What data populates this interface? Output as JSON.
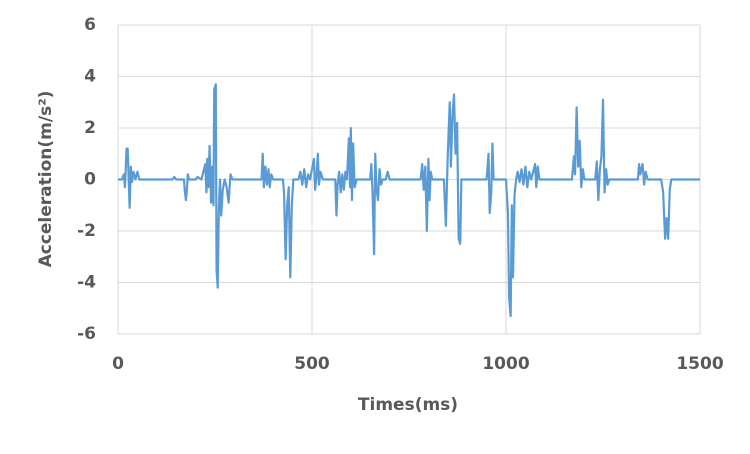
{
  "chart_data": {
    "type": "line",
    "x_label": "Times(ms)",
    "y_label": "Acceleration(m/s²)",
    "color": "#5b9bd5",
    "grid": true,
    "xlim": [
      0,
      1500
    ],
    "xticks": [
      0,
      500,
      1000,
      1500
    ],
    "ylim": [
      -6,
      6
    ],
    "yticks": [
      -6,
      -4,
      -2,
      0,
      2,
      4,
      6
    ],
    "x": [
      0,
      10,
      15,
      18,
      22,
      25,
      28,
      30,
      33,
      36,
      40,
      45,
      50,
      55,
      140,
      145,
      150,
      170,
      172,
      175,
      178,
      180,
      183,
      200,
      205,
      215,
      225,
      228,
      230,
      233,
      236,
      240,
      243,
      246,
      248,
      252,
      254,
      257,
      260,
      263,
      266,
      270,
      275,
      280,
      285,
      290,
      295,
      370,
      373,
      376,
      380,
      384,
      388,
      391,
      395,
      400,
      425,
      428,
      432,
      436,
      440,
      444,
      448,
      452,
      465,
      470,
      475,
      480,
      485,
      490,
      495,
      505,
      508,
      512,
      515,
      518,
      522,
      528,
      560,
      563,
      566,
      570,
      574,
      578,
      582,
      586,
      590,
      595,
      598,
      600,
      603,
      606,
      610,
      615,
      650,
      653,
      656,
      660,
      663,
      666,
      670,
      674,
      678,
      682,
      690,
      695,
      700,
      780,
      784,
      788,
      792,
      796,
      800,
      803,
      806,
      810,
      840,
      845,
      850,
      855,
      858,
      862,
      866,
      870,
      874,
      878,
      882,
      885,
      900,
      950,
      955,
      958,
      962,
      965,
      968,
      975,
      1000,
      1005,
      1008,
      1012,
      1015,
      1018,
      1022,
      1026,
      1030,
      1035,
      1040,
      1045,
      1050,
      1055,
      1060,
      1065,
      1075,
      1078,
      1082,
      1086,
      1170,
      1175,
      1178,
      1182,
      1186,
      1190,
      1194,
      1198,
      1202,
      1230,
      1234,
      1238,
      1242,
      1246,
      1250,
      1254,
      1258,
      1262,
      1266,
      1340,
      1343,
      1346,
      1352,
      1356,
      1360,
      1365,
      1400,
      1405,
      1410,
      1414,
      1418,
      1422,
      1426,
      1500
    ],
    "values": [
      0,
      0,
      0.2,
      -0.3,
      1.2,
      1.2,
      -0.2,
      -1.1,
      0.5,
      -0.1,
      0.3,
      0,
      0.3,
      0,
      0,
      0.1,
      0,
      0,
      -0.4,
      -0.8,
      -0.3,
      0.2,
      0,
      0,
      0.1,
      0,
      0.6,
      -0.5,
      0.8,
      -0.3,
      1.3,
      -0.9,
      0.5,
      -1,
      3.5,
      3.7,
      -3.5,
      -4.2,
      -1,
      0,
      -1.4,
      -0.4,
      0,
      -0.3,
      -0.9,
      0.2,
      0,
      0,
      1,
      -0.3,
      0.5,
      -0.2,
      0.4,
      -0.3,
      0.2,
      0,
      0,
      -0.5,
      -3.1,
      -1,
      -0.3,
      -3.8,
      -1,
      0,
      0,
      0.3,
      -0.2,
      0.4,
      -0.3,
      0.2,
      0,
      0.8,
      -0.4,
      0.2,
      1,
      -0.2,
      0.3,
      0,
      0,
      -1.4,
      -0.2,
      0.3,
      -0.5,
      0.2,
      -0.4,
      0.3,
      0,
      1.6,
      -0.3,
      2,
      -0.8,
      1.4,
      -0.3,
      0,
      0,
      0.6,
      -0.5,
      -2.9,
      1,
      -0.3,
      -0.8,
      0.4,
      -0.2,
      0,
      0,
      0.3,
      0,
      0,
      0.6,
      -0.4,
      0.5,
      -2,
      0.8,
      -0.8,
      0.3,
      0,
      0,
      -1.8,
      1,
      3,
      0.5,
      2.5,
      3.3,
      1,
      2.2,
      -2.3,
      -2.5,
      0,
      0,
      0,
      1,
      -1.3,
      -0.5,
      1.4,
      0,
      0,
      0,
      -1.3,
      -4.6,
      -5.3,
      -1,
      -3.8,
      -0.6,
      0,
      0.3,
      -0.1,
      0.4,
      -0.2,
      0.5,
      -0.3,
      0.3,
      0,
      0.6,
      -0.3,
      0.5,
      0,
      0,
      0.9,
      0.2,
      2.8,
      0.5,
      1.5,
      -0.3,
      0.4,
      0,
      0,
      0.7,
      -0.8,
      0.4,
      0.9,
      3.1,
      -0.5,
      0.4,
      -0.2,
      0,
      0,
      0.6,
      0.2,
      0.6,
      -0.2,
      0.3,
      0,
      0,
      -0.5,
      -2.3,
      -1.5,
      -2.3,
      -0.4,
      0,
      0
    ]
  }
}
